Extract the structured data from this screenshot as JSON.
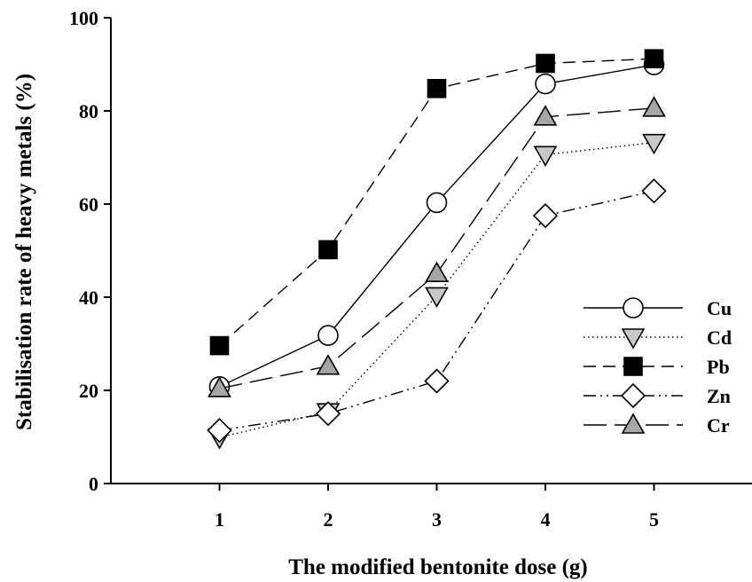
{
  "chart_data": {
    "type": "line",
    "title": "",
    "xlabel": "The modified bentonite dose (g)",
    "ylabel": "Stabilisation rate of heavy metals (%)",
    "x": [
      1,
      2,
      3,
      4,
      5
    ],
    "xlim": [
      0,
      6
    ],
    "ylim": [
      0,
      100
    ],
    "x_ticks": [
      1,
      2,
      3,
      4,
      5
    ],
    "y_ticks": [
      0,
      20,
      40,
      60,
      80,
      100
    ],
    "grid": false,
    "legend_position": "right",
    "series": [
      {
        "name": "Cu",
        "values": [
          20.8,
          31.8,
          60.3,
          85.8,
          89.9
        ],
        "marker": "circle",
        "line": "solid",
        "fill": "#ffffff"
      },
      {
        "name": "Cd",
        "values": [
          9.9,
          15.4,
          40.3,
          70.6,
          73.2
        ],
        "marker": "triangle-down",
        "line": "dotted",
        "fill": "#c8c8c8"
      },
      {
        "name": "Pb",
        "values": [
          29.6,
          50.2,
          84.8,
          90.2,
          91.2
        ],
        "marker": "square",
        "line": "dashed",
        "fill": "#000000"
      },
      {
        "name": "Zn",
        "values": [
          11.4,
          15.0,
          22.0,
          57.5,
          62.8
        ],
        "marker": "diamond",
        "line": "dash-dot-dot",
        "fill": "#ffffff"
      },
      {
        "name": "Cr",
        "values": [
          20.4,
          25.2,
          45.1,
          78.7,
          80.6
        ],
        "marker": "triangle-up",
        "line": "long-dash",
        "fill": "#a6a6a6"
      }
    ]
  }
}
